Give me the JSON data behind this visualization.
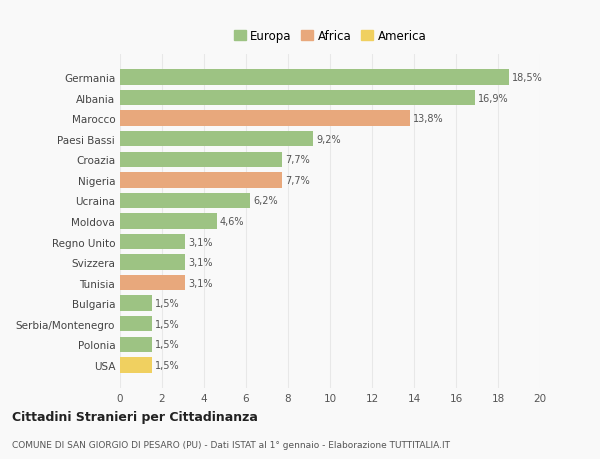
{
  "categories": [
    "Germania",
    "Albania",
    "Marocco",
    "Paesi Bassi",
    "Croazia",
    "Nigeria",
    "Ucraina",
    "Moldova",
    "Regno Unito",
    "Svizzera",
    "Tunisia",
    "Bulgaria",
    "Serbia/Montenegro",
    "Polonia",
    "USA"
  ],
  "values": [
    18.5,
    16.9,
    13.8,
    9.2,
    7.7,
    7.7,
    6.2,
    4.6,
    3.1,
    3.1,
    3.1,
    1.5,
    1.5,
    1.5,
    1.5
  ],
  "labels": [
    "18,5%",
    "16,9%",
    "13,8%",
    "9,2%",
    "7,7%",
    "7,7%",
    "6,2%",
    "4,6%",
    "3,1%",
    "3,1%",
    "3,1%",
    "1,5%",
    "1,5%",
    "1,5%",
    "1,5%"
  ],
  "continents": [
    "Europa",
    "Europa",
    "Africa",
    "Europa",
    "Europa",
    "Africa",
    "Europa",
    "Europa",
    "Europa",
    "Europa",
    "Africa",
    "Europa",
    "Europa",
    "Europa",
    "America"
  ],
  "colors": {
    "Europa": "#9dc383",
    "Africa": "#e8a87c",
    "America": "#f0d060"
  },
  "legend": [
    "Europa",
    "Africa",
    "America"
  ],
  "title": "Cittadini Stranieri per Cittadinanza",
  "subtitle": "COMUNE DI SAN GIORGIO DI PESARO (PU) - Dati ISTAT al 1° gennaio - Elaborazione TUTTITALIA.IT",
  "xlim": [
    0,
    20
  ],
  "xticks": [
    0,
    2,
    4,
    6,
    8,
    10,
    12,
    14,
    16,
    18,
    20
  ],
  "background_color": "#f9f9f9",
  "grid_color": "#e8e8e8",
  "bar_height": 0.75
}
